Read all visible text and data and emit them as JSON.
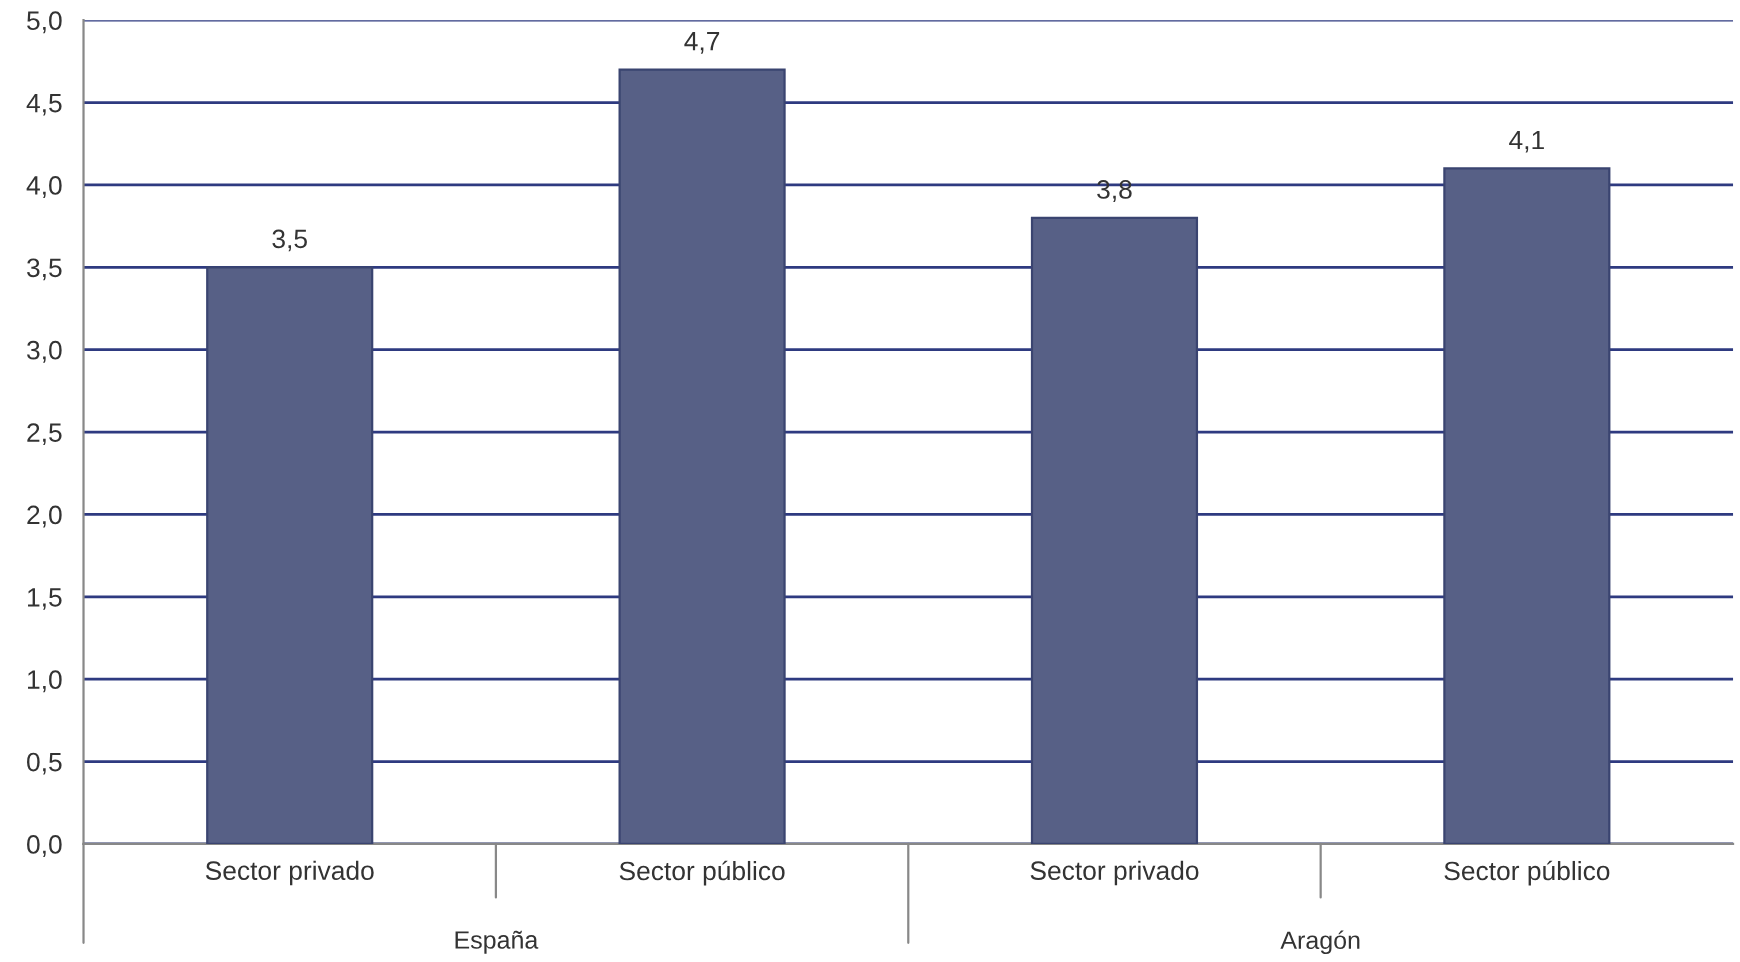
{
  "chart_data": {
    "type": "bar",
    "categories": [
      "Sector privado",
      "Sector público",
      "Sector privado",
      "Sector público"
    ],
    "values": [
      3.5,
      4.7,
      3.8,
      4.1
    ],
    "value_labels": [
      "3,5",
      "4,7",
      "3,8",
      "4,1"
    ],
    "color": "#4f5b8e",
    "ylim": [
      0,
      5
    ],
    "yticks": [
      {
        "value": 0,
        "label": "0,0"
      },
      {
        "value": 0.5,
        "label": "0,5"
      },
      {
        "value": 1,
        "label": "1,0"
      },
      {
        "value": 1.5,
        "label": "1,5"
      },
      {
        "value": 2,
        "label": "2,0"
      },
      {
        "value": 2.5,
        "label": "2,5"
      },
      {
        "value": 3,
        "label": "3,0"
      },
      {
        "value": 3.5,
        "label": "3,5"
      },
      {
        "value": 4,
        "label": "4,0"
      },
      {
        "value": 4.5,
        "label": "4,5"
      },
      {
        "value": 5,
        "label": "5,0"
      }
    ],
    "grid": "y",
    "annotations": [
      "España",
      "Aragón"
    ]
  }
}
